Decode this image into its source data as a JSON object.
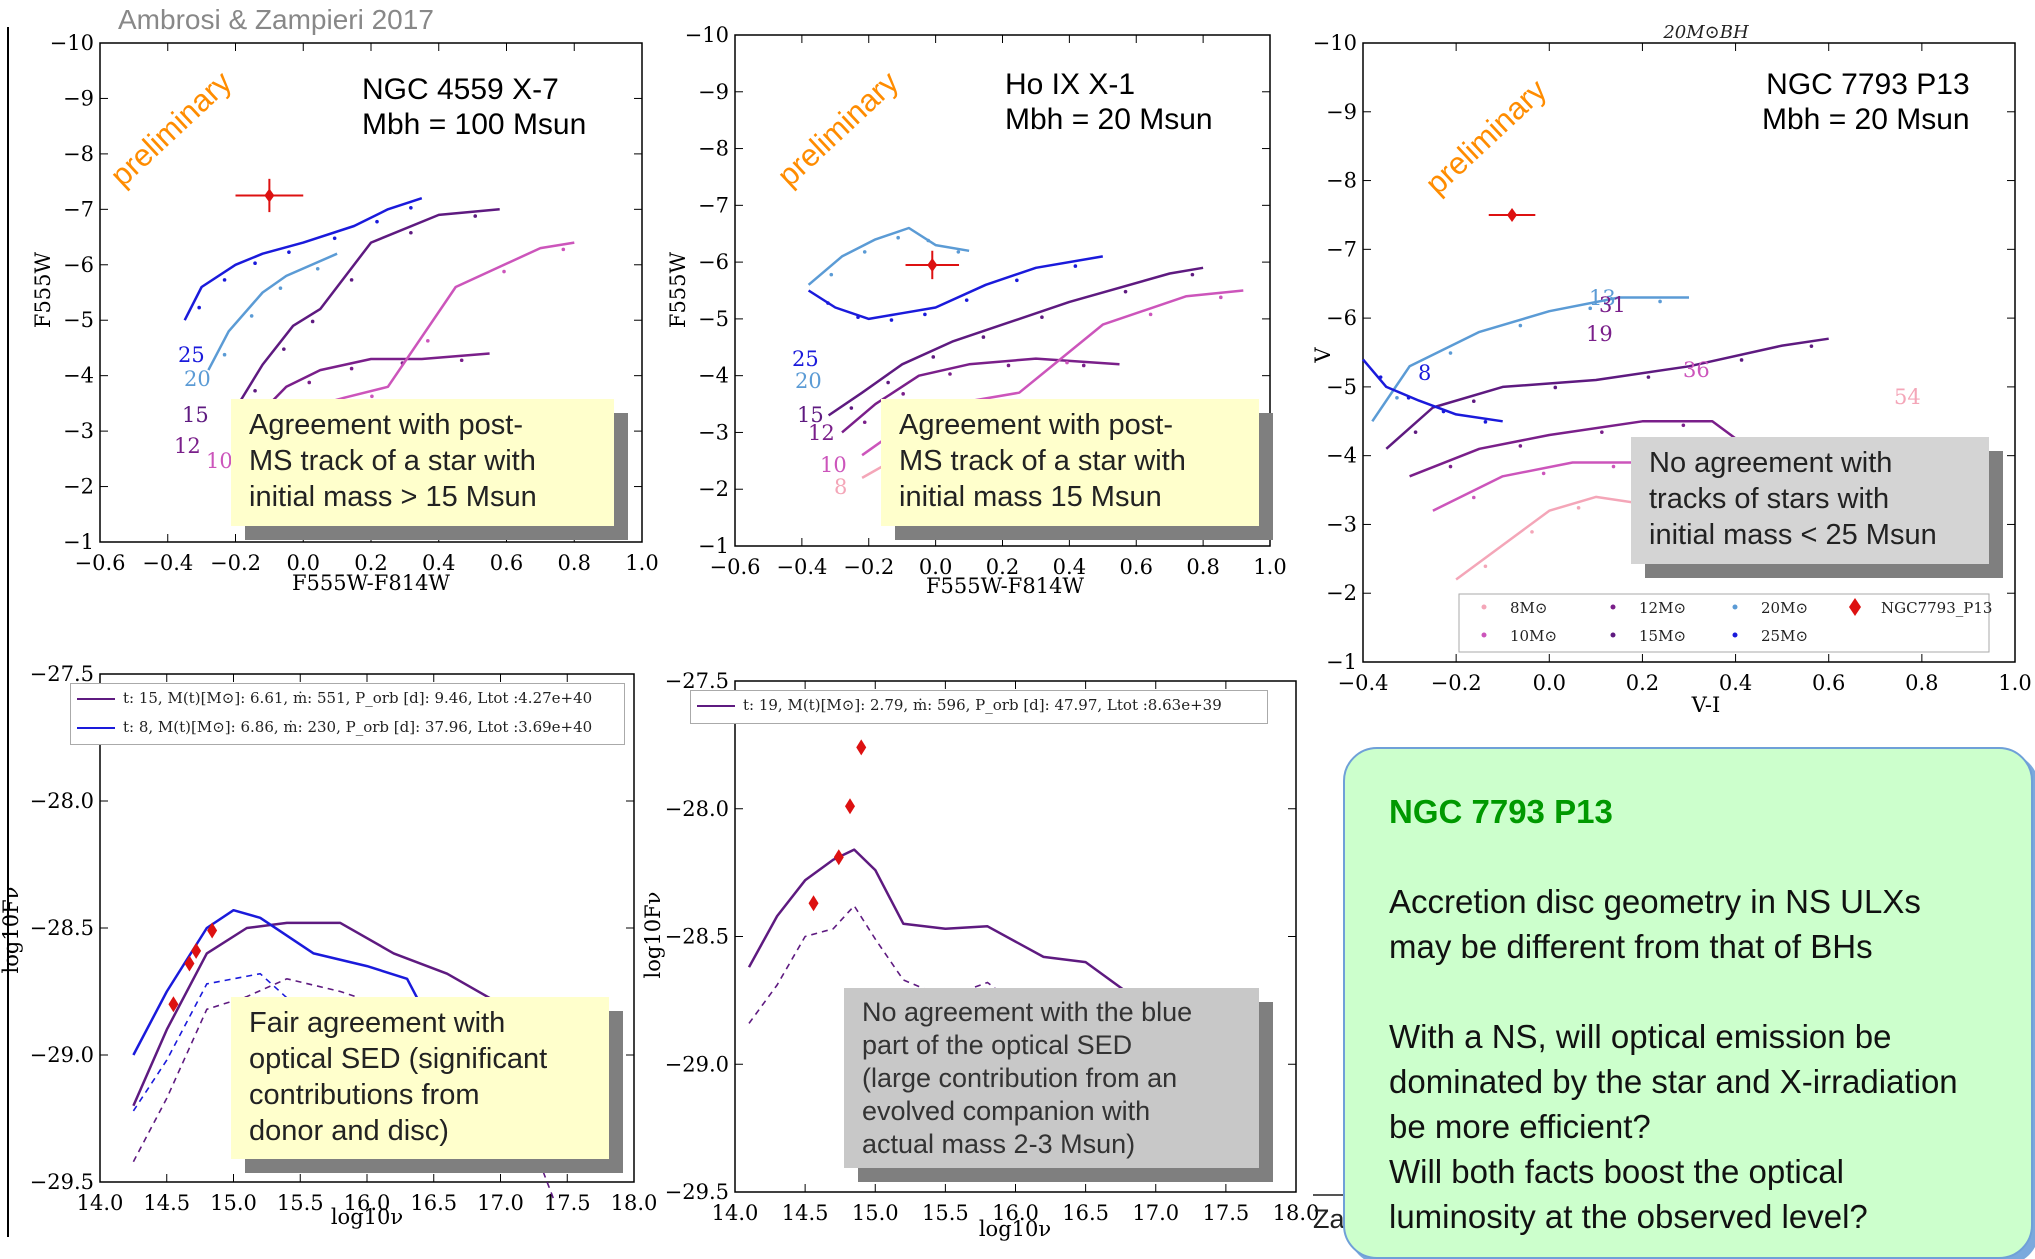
{
  "header": {
    "citation": "Ambrosi & Zampieri 2017",
    "preliminary": "preliminary",
    "footer_fragment": "Zamp"
  },
  "panels": {
    "p1": {
      "title_line1": "NGC 4559 X-7",
      "title_line2": "Mbh = 100 Msun",
      "note_lines": [
        "Agreement with post-",
        "MS track of a star with",
        "initial mass > 15 Msun"
      ],
      "track_labels": [
        "25",
        "20",
        "15",
        "12",
        "10"
      ]
    },
    "p2": {
      "title_line1": "Ho IX X-1",
      "title_line2": "Mbh = 20 Msun",
      "note_lines": [
        "Agreement with post-",
        "MS track of a star with",
        "initial mass 15 Msun"
      ],
      "track_labels": [
        "25",
        "20",
        "15",
        "12",
        "10",
        "8"
      ]
    },
    "p3": {
      "title_line1": "NGC 7793 P13",
      "title_line2": "Mbh = 20 Msun",
      "top_label": "20M⊙BH",
      "note_lines": [
        "No agreement with",
        "tracks of stars with",
        "initial mass < 25 Msun"
      ],
      "track_labels": [
        "13",
        "31",
        "19",
        "8",
        "36",
        "54"
      ],
      "legend": [
        "8M⊙",
        "12M⊙",
        "20M⊙",
        "NGC7793_P13",
        "10M⊙",
        "15M⊙",
        "25M⊙"
      ]
    },
    "p4": {
      "legend": [
        "t: 15, M(t)[M⊙]: 6.61, ṁ: 551, P_orb [d]: 9.46, Ltot :4.27e+40",
        "t: 8, M(t)[M⊙]: 6.86, ṁ: 230, P_orb [d]: 37.96, Ltot :3.69e+40"
      ],
      "note_lines": [
        "Fair agreement with",
        "optical SED (significant",
        "contributions from",
        "donor and disc)"
      ]
    },
    "p5": {
      "legend": [
        "t: 19, M(t)[M⊙]: 2.79, ṁ: 596, P_orb [d]: 47.97, Ltot :8.63e+39"
      ],
      "note_lines": [
        "No agreement with the blue",
        "part of the optical SED",
        "(large contribution from an",
        "evolved companion with",
        "actual mass 2-3 Msun)"
      ]
    }
  },
  "callout": {
    "title": "NGC 7793 P13",
    "para1": "Accretion disc geometry in NS ULXs may be different from that of BHs",
    "para2": "With a NS, will optical emission be dominated by the star and X-irradiation be more efficient?",
    "para3": "Will both facts boost the optical luminosity at the observed level?"
  },
  "colors": {
    "m8": "#f4a6b8",
    "m10": "#cc55bb",
    "m12": "#7a1f8a",
    "m15": "#5e1a80",
    "m20": "#5b9bd5",
    "m25": "#1a1adb",
    "obs": "#dd1111",
    "prelim": "#ff8c00"
  },
  "chart_data": [
    {
      "type": "scatter",
      "title": "NGC 4559 X-7  Mbh = 100 Msun",
      "xlabel": "F555W-F814W",
      "ylabel": "F555W",
      "xlim": [
        -0.6,
        1.0
      ],
      "ylim": [
        -1,
        -10
      ],
      "xticks": [
        "−0.6",
        "−0.4",
        "−0.2",
        "0.0",
        "0.2",
        "0.4",
        "0.6",
        "0.8",
        "1.0"
      ],
      "yticks": [
        "−10",
        "−9",
        "−8",
        "−7",
        "−6",
        "−5",
        "−4",
        "−3",
        "−2",
        "−1"
      ],
      "observed": {
        "x": -0.1,
        "y": -7.25,
        "xerr": 0.1,
        "yerr": 0.3
      },
      "series": [
        {
          "name": "25",
          "color_key": "m25",
          "x": [
            -0.35,
            -0.3,
            -0.2,
            -0.12,
            0.0,
            0.15,
            0.25,
            0.35
          ],
          "y": [
            -5.0,
            -5.6,
            -6.0,
            -6.2,
            -6.4,
            -6.7,
            -7.0,
            -7.2
          ]
        },
        {
          "name": "20",
          "color_key": "m20",
          "x": [
            -0.28,
            -0.22,
            -0.12,
            -0.05,
            0.1
          ],
          "y": [
            -4.1,
            -4.8,
            -5.5,
            -5.8,
            -6.2
          ]
        },
        {
          "name": "15",
          "color_key": "m15",
          "x": [
            -0.2,
            -0.12,
            -0.03,
            0.05,
            0.2,
            0.4,
            0.58
          ],
          "y": [
            -3.4,
            -4.2,
            -4.9,
            -5.2,
            -6.4,
            -6.9,
            -7.0
          ]
        },
        {
          "name": "12",
          "color_key": "m12",
          "x": [
            -0.13,
            -0.05,
            0.05,
            0.2,
            0.35,
            0.55
          ],
          "y": [
            -3.3,
            -3.8,
            -4.1,
            -4.3,
            -4.3,
            -4.4
          ]
        },
        {
          "name": "10",
          "color_key": "m10",
          "x": [
            -0.08,
            0.0,
            0.12,
            0.25,
            0.45,
            0.7,
            0.8
          ],
          "y": [
            -3.0,
            -3.4,
            -3.6,
            -3.8,
            -5.6,
            -6.3,
            -6.4
          ]
        }
      ]
    },
    {
      "type": "scatter",
      "title": "Ho IX X-1  Mbh = 20 Msun",
      "xlabel": "F555W-F814W",
      "ylabel": "F555W",
      "xlim": [
        -0.6,
        1.0
      ],
      "ylim": [
        -1,
        -10
      ],
      "xticks": [
        "−0.6",
        "−0.4",
        "−0.2",
        "0.0",
        "0.2",
        "0.4",
        "0.6",
        "0.8",
        "1.0"
      ],
      "yticks": [
        "−10",
        "−9",
        "−8",
        "−7",
        "−6",
        "−5",
        "−4",
        "−3",
        "−2",
        "−1"
      ],
      "observed": {
        "x": -0.01,
        "y": -5.95,
        "xerr": 0.08,
        "yerr": 0.25
      },
      "series": [
        {
          "name": "25",
          "color_key": "m25",
          "x": [
            -0.38,
            -0.3,
            -0.2,
            -0.1,
            0.0,
            0.15,
            0.3,
            0.5
          ],
          "y": [
            -5.5,
            -5.2,
            -5.0,
            -5.1,
            -5.2,
            -5.6,
            -5.9,
            -6.1
          ]
        },
        {
          "name": "20",
          "color_key": "m20",
          "x": [
            -0.38,
            -0.28,
            -0.18,
            -0.08,
            0.0,
            0.1
          ],
          "y": [
            -5.6,
            -6.1,
            -6.4,
            -6.6,
            -6.3,
            -6.2
          ]
        },
        {
          "name": "15",
          "color_key": "m15",
          "x": [
            -0.32,
            -0.22,
            -0.1,
            0.05,
            0.2,
            0.4,
            0.7,
            0.8
          ],
          "y": [
            -3.3,
            -3.7,
            -4.2,
            -4.6,
            -4.9,
            -5.3,
            -5.8,
            -5.9
          ]
        },
        {
          "name": "12",
          "color_key": "m12",
          "x": [
            -0.28,
            -0.18,
            -0.05,
            0.1,
            0.3,
            0.55
          ],
          "y": [
            -3.0,
            -3.5,
            -4.0,
            -4.2,
            -4.3,
            -4.2
          ]
        },
        {
          "name": "10",
          "color_key": "m10",
          "x": [
            -0.22,
            -0.1,
            0.05,
            0.25,
            0.5,
            0.75,
            0.92
          ],
          "y": [
            -2.6,
            -3.1,
            -3.5,
            -3.7,
            -4.9,
            -5.4,
            -5.5
          ]
        },
        {
          "name": "8",
          "color_key": "m8",
          "x": [
            -0.22,
            -0.1,
            0.05,
            0.25
          ],
          "y": [
            -2.2,
            -2.6,
            -3.0,
            -3.1
          ]
        }
      ]
    },
    {
      "type": "scatter",
      "title": "NGC 7793 P13  Mbh = 20 Msun",
      "xlabel": "V-I",
      "ylabel": "V",
      "xlim": [
        -0.4,
        1.0
      ],
      "ylim": [
        -1,
        -10
      ],
      "xticks": [
        "−0.4",
        "−0.2",
        "0.0",
        "0.2",
        "0.4",
        "0.6",
        "0.8",
        "1.0"
      ],
      "yticks": [
        "−10",
        "−9",
        "−8",
        "−7",
        "−6",
        "−5",
        "−4",
        "−3",
        "−2",
        "−1"
      ],
      "observed": {
        "x": -0.08,
        "y": -7.5,
        "xerr": 0.05,
        "yerr": 0.0
      },
      "series": [
        {
          "name": "8M⊙",
          "color_key": "m8",
          "x": [
            -0.2,
            -0.1,
            0.0,
            0.1,
            0.3,
            0.5
          ],
          "y": [
            -2.2,
            -2.7,
            -3.2,
            -3.4,
            -3.2,
            -3.0
          ]
        },
        {
          "name": "10M⊙",
          "color_key": "m10",
          "x": [
            -0.25,
            -0.1,
            0.05,
            0.2,
            0.35,
            0.5
          ],
          "y": [
            -3.2,
            -3.7,
            -3.9,
            -3.9,
            -3.8,
            -3.5
          ]
        },
        {
          "name": "12M⊙",
          "color_key": "m12",
          "x": [
            -0.3,
            -0.15,
            0.0,
            0.2,
            0.35,
            0.45
          ],
          "y": [
            -3.7,
            -4.1,
            -4.3,
            -4.5,
            -4.5,
            -4.0
          ]
        },
        {
          "name": "15M⊙",
          "color_key": "m15",
          "x": [
            -0.35,
            -0.25,
            -0.1,
            0.1,
            0.3,
            0.5,
            0.6
          ],
          "y": [
            -4.1,
            -4.7,
            -5.0,
            -5.1,
            -5.3,
            -5.6,
            -5.7
          ]
        },
        {
          "name": "20M⊙",
          "color_key": "m20",
          "x": [
            -0.38,
            -0.3,
            -0.15,
            0.0,
            0.15,
            0.3
          ],
          "y": [
            -4.5,
            -5.3,
            -5.8,
            -6.1,
            -6.3,
            -6.3
          ]
        },
        {
          "name": "25M⊙",
          "color_key": "m25",
          "x": [
            -0.4,
            -0.35,
            -0.28,
            -0.2,
            -0.1
          ],
          "y": [
            -5.4,
            -5.0,
            -4.8,
            -4.6,
            -4.5
          ]
        }
      ]
    },
    {
      "type": "line",
      "xlabel": "log10ν",
      "ylabel": "log10Fν",
      "xlim": [
        14.0,
        18.0
      ],
      "ylim": [
        -29.5,
        -27.5
      ],
      "xticks": [
        "14.0",
        "14.5",
        "15.0",
        "15.5",
        "16.0",
        "16.5",
        "17.0",
        "17.5",
        "18.0"
      ],
      "yticks": [
        "−27.5",
        "−28.0",
        "−28.5",
        "−29.0",
        "−29.5"
      ],
      "observed_points": [
        {
          "x": 14.55,
          "y": -28.8
        },
        {
          "x": 14.67,
          "y": -28.64
        },
        {
          "x": 14.72,
          "y": -28.59
        },
        {
          "x": 14.84,
          "y": -28.51
        }
      ],
      "series": [
        {
          "name": "t: 15",
          "color_key": "m15",
          "x": [
            14.25,
            14.5,
            14.8,
            15.1,
            15.4,
            15.8,
            16.2,
            16.6,
            17.0,
            17.4
          ],
          "y": [
            -29.2,
            -28.9,
            -28.6,
            -28.5,
            -28.48,
            -28.48,
            -28.6,
            -28.68,
            -28.8,
            -29.3
          ]
        },
        {
          "name": "t: 8",
          "color_key": "m25",
          "x": [
            14.25,
            14.5,
            14.8,
            15.0,
            15.2,
            15.6,
            16.0,
            16.3,
            16.6
          ],
          "y": [
            -29.0,
            -28.75,
            -28.5,
            -28.43,
            -28.46,
            -28.6,
            -28.65,
            -28.7,
            -29.0
          ]
        }
      ]
    },
    {
      "type": "line",
      "xlabel": "log10ν",
      "ylabel": "log10Fν",
      "xlim": [
        14.0,
        18.0
      ],
      "ylim": [
        -29.5,
        -27.5
      ],
      "xticks": [
        "14.0",
        "14.5",
        "15.0",
        "15.5",
        "16.0",
        "16.5",
        "17.0",
        "17.5",
        "18.0"
      ],
      "yticks": [
        "−27.5",
        "−28.0",
        "−28.5",
        "−29.0",
        "−29.5"
      ],
      "observed_points": [
        {
          "x": 14.56,
          "y": -28.37
        },
        {
          "x": 14.74,
          "y": -28.19
        },
        {
          "x": 14.82,
          "y": -27.99
        },
        {
          "x": 14.9,
          "y": -27.76
        }
      ],
      "series": [
        {
          "name": "t: 19",
          "color_key": "m15",
          "x": [
            14.1,
            14.3,
            14.5,
            14.7,
            14.85,
            15.0,
            15.2,
            15.5,
            15.8,
            16.2,
            16.5,
            16.8,
            17.0
          ],
          "y": [
            -28.62,
            -28.42,
            -28.28,
            -28.2,
            -28.16,
            -28.24,
            -28.45,
            -28.47,
            -28.46,
            -28.58,
            -28.6,
            -28.72,
            -28.8
          ]
        }
      ]
    }
  ]
}
